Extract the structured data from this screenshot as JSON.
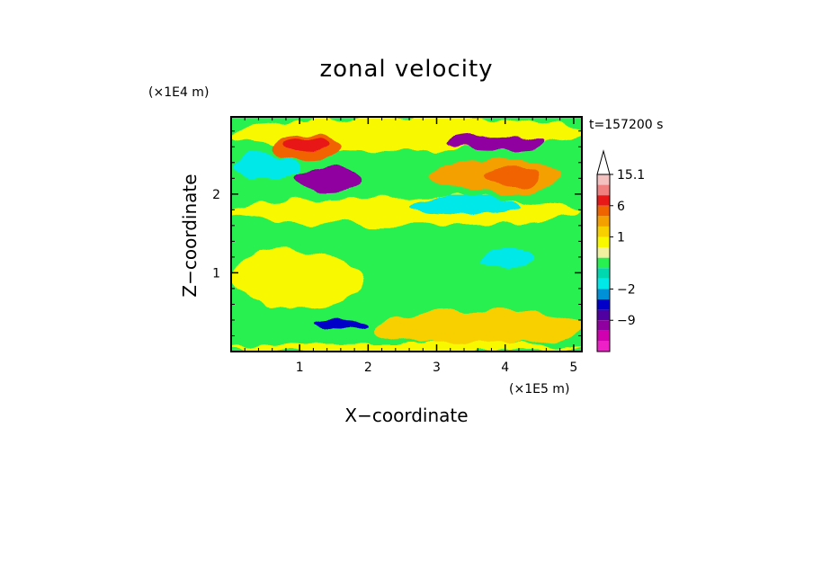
{
  "chart_data": {
    "type": "heatmap",
    "title": "zonal velocity",
    "xlabel": "X−coordinate",
    "ylabel": "Z−coordinate",
    "x_scale_note": "(×1E5 m)",
    "y_scale_note": "(×1E4 m)",
    "time_label": "t=157200 s",
    "xlim": [
      0,
      5.12
    ],
    "ylim": [
      0,
      2.98
    ],
    "x_ticks": [
      "1",
      "2",
      "3",
      "4",
      "5"
    ],
    "y_ticks": [
      "1",
      "2"
    ],
    "colorbar": {
      "labels": [
        "15.1",
        "6",
        "1",
        "−2",
        "−9"
      ],
      "levels_top_to_bottom": [
        15.1,
        12,
        9,
        6,
        4,
        2,
        1,
        0.5,
        0,
        -0.5,
        -1,
        -2,
        -4,
        -6,
        -9,
        -12,
        -15
      ],
      "colors_top_to_bottom": [
        "#f5c0c0",
        "#f08080",
        "#e81818",
        "#f06400",
        "#f4a000",
        "#f8d000",
        "#f8f800",
        "#f0f0a0",
        "#28f050",
        "#00d8b0",
        "#00e8e8",
        "#0090d8",
        "#0000c8",
        "#5000a0",
        "#9000a0",
        "#d000b0",
        "#f020c8"
      ],
      "extends": "max"
    },
    "regions": [
      {
        "x": [
          0,
          5.12
        ],
        "z": [
          0,
          2.98
        ],
        "value": 0
      },
      {
        "x": [
          0,
          5.12
        ],
        "z": [
          2.55,
          2.98
        ],
        "value": 1
      },
      {
        "x": [
          0,
          5.12
        ],
        "z": [
          1.6,
          1.95
        ],
        "value": 1
      },
      {
        "x": [
          0,
          1.9
        ],
        "z": [
          0.55,
          1.3
        ],
        "value": 1
      },
      {
        "x": [
          2.1,
          5.12
        ],
        "z": [
          0.1,
          0.5
        ],
        "value": 2
      },
      {
        "x": [
          0.6,
          1.6
        ],
        "z": [
          2.45,
          2.75
        ],
        "value": 6
      },
      {
        "x": [
          0.8,
          1.4
        ],
        "z": [
          2.55,
          2.7
        ],
        "value": 9
      },
      {
        "x": [
          3.1,
          4.6
        ],
        "z": [
          2.55,
          2.75
        ],
        "value": -9
      },
      {
        "x": [
          2.9,
          4.8
        ],
        "z": [
          2.0,
          2.45
        ],
        "value": 4
      },
      {
        "x": [
          3.7,
          4.5
        ],
        "z": [
          2.1,
          2.35
        ],
        "value": 6
      },
      {
        "x": [
          0.9,
          1.9
        ],
        "z": [
          2.05,
          2.35
        ],
        "value": -9
      },
      {
        "x": [
          0,
          1.0
        ],
        "z": [
          2.2,
          2.5
        ],
        "value": -1
      },
      {
        "x": [
          2.6,
          4.2
        ],
        "z": [
          1.75,
          1.95
        ],
        "value": -1
      },
      {
        "x": [
          3.6,
          4.4
        ],
        "z": [
          1.05,
          1.3
        ],
        "value": -1
      },
      {
        "x": [
          1.2,
          2.0
        ],
        "z": [
          0.28,
          0.4
        ],
        "value": -4
      },
      {
        "x": [
          0,
          5.12
        ],
        "z": [
          0,
          0.12
        ],
        "value": 1
      }
    ]
  }
}
